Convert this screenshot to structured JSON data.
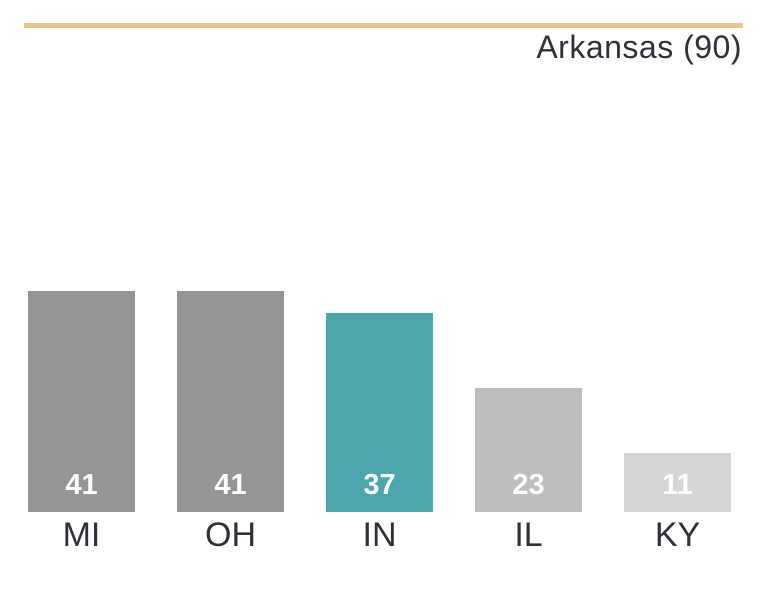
{
  "header": {
    "title": "Arkansas (90)",
    "title_color": "#2F3138",
    "reference_line_color": "#EAC48B"
  },
  "chart_data": {
    "type": "bar",
    "title": "Arkansas (90)",
    "categories": [
      "MI",
      "OH",
      "IN",
      "IL",
      "KY"
    ],
    "values": [
      41,
      41,
      37,
      23,
      11
    ],
    "bar_colors": [
      "#959595",
      "#959595",
      "#4BA6AE",
      "#BEBEBE",
      "#D5D5D5"
    ],
    "highlight_category": "IN",
    "highlight_color": "#4BA6AE",
    "value_label_color": "#ffffff",
    "category_label_color": "#2F3138",
    "value_labels_position": "inside-bottom",
    "ylim": [
      0,
      90
    ],
    "reference_line": {
      "label": "Arkansas",
      "value": 90,
      "color": "#EAC48B"
    },
    "grid": false,
    "legend": false,
    "xlabel": "",
    "ylabel": ""
  }
}
